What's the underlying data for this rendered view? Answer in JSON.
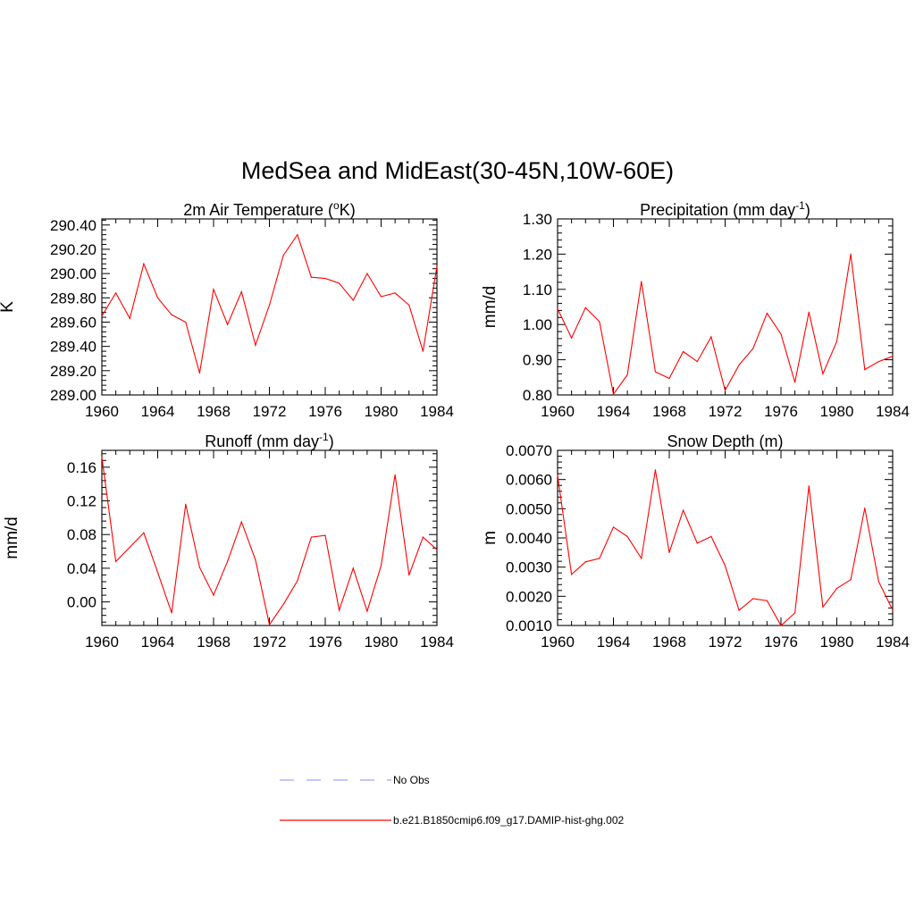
{
  "figure": {
    "title": "MedSea and MidEast(30-45N,10W-60E)"
  },
  "legend": {
    "items": [
      {
        "label": "No Obs",
        "color": "#a0a0ff",
        "style": "dashed"
      },
      {
        "label": "b.e21.B1850cmip6.f09_g17.DAMIP-hist-ghg.002",
        "color": "#ff0000",
        "style": "solid"
      }
    ]
  },
  "chart_data": [
    {
      "type": "line",
      "title": "2m Air Temperature (oK)",
      "title_parts": {
        "pre": "2m Air Temperature (",
        "sup": "o",
        "post": "K)"
      },
      "xlabel": "",
      "ylabel": "K",
      "xlim": [
        1960,
        1984
      ],
      "ylim": [
        289.0,
        290.45
      ],
      "xticks": [
        1960,
        1964,
        1968,
        1972,
        1976,
        1980,
        1984
      ],
      "xtick_labels": [
        "1960",
        "1964",
        "1968",
        "1972",
        "1976",
        "1980",
        "1984"
      ],
      "yticks": [
        289.0,
        289.2,
        289.4,
        289.6,
        289.8,
        290.0,
        290.2,
        290.4
      ],
      "ytick_labels": [
        "289.00",
        "289.20",
        "289.40",
        "289.60",
        "289.80",
        "290.00",
        "290.20",
        "290.40"
      ],
      "series": [
        {
          "name": "b.e21.B1850cmip6.f09_g17.DAMIP-hist-ghg.002",
          "color": "#ff0000",
          "x": [
            1960,
            1961,
            1962,
            1963,
            1964,
            1965,
            1966,
            1967,
            1968,
            1969,
            1970,
            1971,
            1972,
            1973,
            1974,
            1975,
            1976,
            1977,
            1978,
            1979,
            1980,
            1981,
            1982,
            1983,
            1984
          ],
          "values": [
            289.65,
            289.84,
            289.63,
            290.08,
            289.8,
            289.66,
            289.6,
            289.18,
            289.87,
            289.58,
            289.85,
            289.41,
            289.74,
            290.15,
            290.32,
            289.97,
            289.96,
            289.92,
            289.78,
            290.0,
            289.81,
            289.84,
            289.74,
            289.36,
            290.06
          ]
        }
      ]
    },
    {
      "type": "line",
      "title": "Precipitation (mm day-1)",
      "title_parts": {
        "pre": "Precipitation (mm day",
        "sup": "-1",
        "post": ")"
      },
      "xlabel": "",
      "ylabel": "mm/d",
      "xlim": [
        1960,
        1984
      ],
      "ylim": [
        0.8,
        1.3
      ],
      "xticks": [
        1960,
        1964,
        1968,
        1972,
        1976,
        1980,
        1984
      ],
      "xtick_labels": [
        "1960",
        "1964",
        "1968",
        "1972",
        "1976",
        "1980",
        "1984"
      ],
      "yticks": [
        0.8,
        0.9,
        1.0,
        1.1,
        1.2,
        1.3
      ],
      "ytick_labels": [
        "0.80",
        "0.90",
        "1.00",
        "1.10",
        "1.20",
        "1.30"
      ],
      "series": [
        {
          "name": "b.e21.B1850cmip6.f09_g17.DAMIP-hist-ghg.002",
          "color": "#ff0000",
          "x": [
            1960,
            1961,
            1962,
            1963,
            1964,
            1965,
            1966,
            1967,
            1968,
            1969,
            1970,
            1971,
            1972,
            1973,
            1974,
            1975,
            1976,
            1977,
            1978,
            1979,
            1980,
            1981,
            1982,
            1983,
            1984
          ],
          "values": [
            1.045,
            0.962,
            1.048,
            1.008,
            0.802,
            0.857,
            1.122,
            0.866,
            0.847,
            0.923,
            0.895,
            0.965,
            0.813,
            0.885,
            0.932,
            1.032,
            0.973,
            0.836,
            1.035,
            0.86,
            0.952,
            1.2,
            0.872,
            0.895,
            0.91
          ]
        }
      ]
    },
    {
      "type": "line",
      "title": "Runoff (mm day-1)",
      "title_parts": {
        "pre": "Runoff (mm day",
        "sup": "-1",
        "post": ")"
      },
      "xlabel": "",
      "ylabel": "mm/d",
      "xlim": [
        1960,
        1984
      ],
      "ylim": [
        -0.028,
        0.18
      ],
      "xticks": [
        1960,
        1964,
        1968,
        1972,
        1976,
        1980,
        1984
      ],
      "xtick_labels": [
        "1960",
        "1964",
        "1968",
        "1972",
        "1976",
        "1980",
        "1984"
      ],
      "yticks": [
        0.0,
        0.04,
        0.08,
        0.12,
        0.16
      ],
      "ytick_labels": [
        "0.00",
        "0.04",
        "0.08",
        "0.12",
        "0.16"
      ],
      "series": [
        {
          "name": "b.e21.B1850cmip6.f09_g17.DAMIP-hist-ghg.002",
          "color": "#ff0000",
          "x": [
            1960,
            1961,
            1962,
            1963,
            1964,
            1965,
            1966,
            1967,
            1968,
            1969,
            1970,
            1971,
            1972,
            1973,
            1974,
            1975,
            1976,
            1977,
            1978,
            1979,
            1980,
            1981,
            1982,
            1983,
            1984
          ],
          "values": [
            0.172,
            0.048,
            0.065,
            0.082,
            0.035,
            -0.013,
            0.116,
            0.041,
            0.008,
            0.048,
            0.095,
            0.05,
            -0.027,
            -0.003,
            0.025,
            0.077,
            0.079,
            -0.01,
            0.04,
            -0.011,
            0.043,
            0.151,
            0.032,
            0.077,
            0.062
          ]
        }
      ]
    },
    {
      "type": "line",
      "title": "Snow Depth (m)",
      "title_parts": {
        "pre": "Snow Depth (m)",
        "sup": "",
        "post": ""
      },
      "xlabel": "",
      "ylabel": "m",
      "xlim": [
        1960,
        1984
      ],
      "ylim": [
        0.001,
        0.007
      ],
      "xticks": [
        1960,
        1964,
        1968,
        1972,
        1976,
        1980,
        1984
      ],
      "xtick_labels": [
        "1960",
        "1964",
        "1968",
        "1972",
        "1976",
        "1980",
        "1984"
      ],
      "yticks": [
        0.001,
        0.002,
        0.003,
        0.004,
        0.005,
        0.006,
        0.007
      ],
      "ytick_labels": [
        "0.0010",
        "0.0020",
        "0.0030",
        "0.0040",
        "0.0050",
        "0.0060",
        "0.0070"
      ],
      "series": [
        {
          "name": "b.e21.B1850cmip6.f09_g17.DAMIP-hist-ghg.002",
          "color": "#ff0000",
          "x": [
            1960,
            1961,
            1962,
            1963,
            1964,
            1965,
            1966,
            1967,
            1968,
            1969,
            1970,
            1971,
            1972,
            1973,
            1974,
            1975,
            1976,
            1977,
            1978,
            1979,
            1980,
            1981,
            1982,
            1983,
            1984
          ],
          "values": [
            0.00615,
            0.00275,
            0.00318,
            0.0033,
            0.00437,
            0.00405,
            0.0033,
            0.00633,
            0.0035,
            0.00495,
            0.00382,
            0.00405,
            0.00305,
            0.00152,
            0.00192,
            0.00185,
            0.001,
            0.00143,
            0.00578,
            0.00163,
            0.00227,
            0.00257,
            0.00502,
            0.0025,
            0.00153
          ]
        }
      ]
    }
  ]
}
